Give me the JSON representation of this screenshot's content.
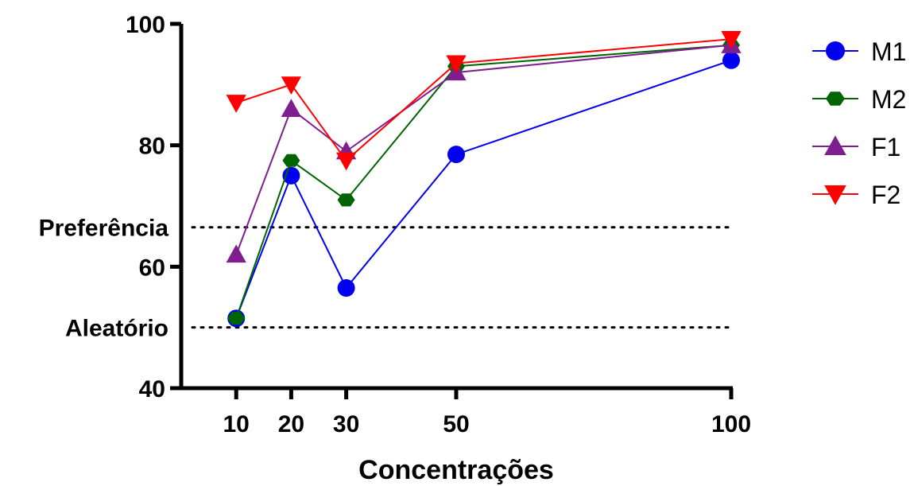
{
  "chart_data": {
    "type": "line",
    "xlabel": "Concentrações",
    "ylabel": "",
    "x": [
      10,
      20,
      30,
      50,
      100
    ],
    "x_tick_labels": [
      "10",
      "20",
      "30",
      "50",
      "100"
    ],
    "xlim": [
      0,
      100
    ],
    "ylim": [
      40,
      100
    ],
    "y_ticks": [
      40,
      60,
      80,
      100
    ],
    "y_tick_labels": [
      "40",
      "60",
      "80",
      "100"
    ],
    "grid": false,
    "legend_position": "right",
    "reference_lines": [
      {
        "label": "Preferência",
        "value": 66.5,
        "style": "dotted"
      },
      {
        "label": "Aleatório",
        "value": 50,
        "style": "dotted"
      }
    ],
    "series": [
      {
        "name": "M1",
        "color": "#0000ee",
        "marker": "circle",
        "values": [
          51.5,
          75,
          56.5,
          78.5,
          94
        ]
      },
      {
        "name": "M2",
        "color": "#006400",
        "marker": "hexagon",
        "values": [
          51.5,
          77.5,
          71,
          93,
          96.5
        ]
      },
      {
        "name": "F1",
        "color": "#7f1f8f",
        "marker": "triangle-up",
        "values": [
          62,
          86,
          79,
          92,
          96.5
        ]
      },
      {
        "name": "F2",
        "color": "#ff0000",
        "marker": "triangle-down",
        "values": [
          87,
          90,
          77.5,
          93.5,
          97.5
        ]
      }
    ]
  }
}
